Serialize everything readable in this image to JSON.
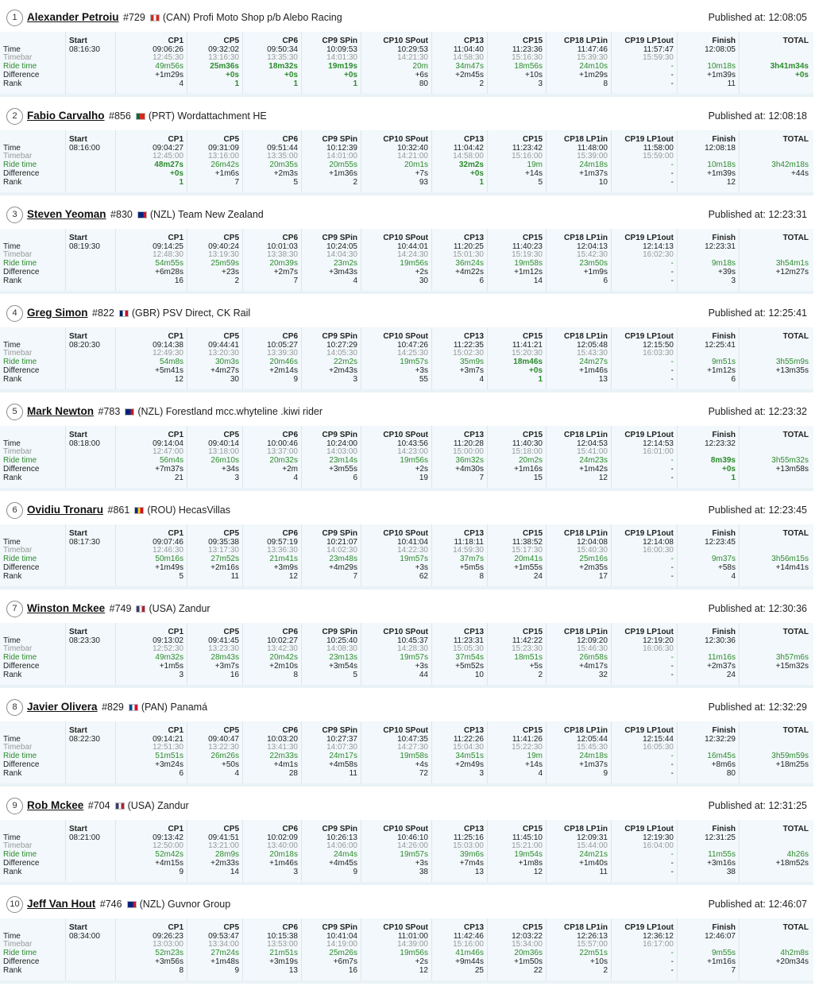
{
  "columns": [
    "Start",
    "CP1",
    "CP5",
    "CP6",
    "CP9 SPin",
    "CP10 SPout",
    "CP13",
    "CP15",
    "CP18 LP1in",
    "CP19 LP1out",
    "Finish",
    "TOTAL"
  ],
  "row_labels": [
    "Time",
    "Timebar",
    "Ride time",
    "Difference",
    "Rank"
  ],
  "published_label": "Published at:",
  "colors": {
    "green": "#2e8b2e",
    "label_gray": "#999999",
    "row_bg": "#f2f8fb"
  },
  "riders": [
    {
      "pos": "1",
      "name": "Alexander Petroiu",
      "bib": "#729",
      "flag": "flag-can-icon",
      "flag_colors": [
        "#d52b1e",
        "#ffffff",
        "#d52b1e"
      ],
      "country": "(CAN)",
      "team": "Profi Moto Shop p/b Alebo Racing",
      "published": "12:08:05",
      "start": "08:16:30",
      "time": [
        "09:06:26",
        "09:32:02",
        "09:50:34",
        "10:09:53",
        "10:29:53",
        "11:04:40",
        "11:23:36",
        "11:47:46",
        "11:57:47",
        "12:08:05"
      ],
      "timebar": [
        "12:45:30",
        "13:16:30",
        "13:35:30",
        "14:01:30",
        "14:21:30",
        "14:58:30",
        "15:16:30",
        "15:39:30",
        "15:59:30",
        ""
      ],
      "ride": [
        "49m56s",
        "25m36s",
        "18m32s",
        "19m19s",
        "20m",
        "34m47s",
        "18m56s",
        "24m10s",
        "-",
        "10m18s",
        "3h41m34s"
      ],
      "ride_bold": [
        false,
        true,
        true,
        true,
        false,
        false,
        false,
        false,
        false,
        false,
        true
      ],
      "diff": [
        "+1m29s",
        "+0s",
        "+0s",
        "+0s",
        "+6s",
        "+2m45s",
        "+10s",
        "+1m29s",
        "-",
        "+1m39s",
        "+0s"
      ],
      "diff_green": [
        false,
        true,
        true,
        true,
        false,
        false,
        false,
        false,
        false,
        false,
        true
      ],
      "rank": [
        "4",
        "1",
        "1",
        "1",
        "80",
        "2",
        "3",
        "8",
        "-",
        "11",
        ""
      ],
      "rank_green": [
        false,
        true,
        true,
        true,
        false,
        false,
        false,
        false,
        false,
        false,
        false
      ]
    },
    {
      "pos": "2",
      "name": "Fabio Carvalho",
      "bib": "#856",
      "flag": "flag-prt-icon",
      "flag_colors": [
        "#046a38",
        "#da291c",
        "#da291c"
      ],
      "country": "(PRT)",
      "team": "Wordattachment HE",
      "published": "12:08:18",
      "start": "08:16:00",
      "time": [
        "09:04:27",
        "09:31:09",
        "09:51:44",
        "10:12:39",
        "10:32:40",
        "11:04:42",
        "11:23:42",
        "11:48:00",
        "11:58:00",
        "12:08:18"
      ],
      "timebar": [
        "12:45:00",
        "13:16:00",
        "13:35:00",
        "14:01:00",
        "14:21:00",
        "14:58:00",
        "15:16:00",
        "15:39:00",
        "15:59:00",
        ""
      ],
      "ride": [
        "48m27s",
        "26m42s",
        "20m35s",
        "20m55s",
        "20m1s",
        "32m2s",
        "19m",
        "24m18s",
        "-",
        "10m18s",
        "3h42m18s"
      ],
      "ride_bold": [
        true,
        false,
        false,
        false,
        false,
        true,
        false,
        false,
        false,
        false,
        false
      ],
      "diff": [
        "+0s",
        "+1m6s",
        "+2m3s",
        "+1m36s",
        "+7s",
        "+0s",
        "+14s",
        "+1m37s",
        "-",
        "+1m39s",
        "+44s"
      ],
      "diff_green": [
        true,
        false,
        false,
        false,
        false,
        true,
        false,
        false,
        false,
        false,
        false
      ],
      "rank": [
        "1",
        "7",
        "5",
        "2",
        "93",
        "1",
        "5",
        "10",
        "-",
        "12",
        ""
      ],
      "rank_green": [
        true,
        false,
        false,
        false,
        false,
        true,
        false,
        false,
        false,
        false,
        false
      ]
    },
    {
      "pos": "3",
      "name": "Steven Yeoman",
      "bib": "#830",
      "flag": "flag-nzl-icon",
      "flag_colors": [
        "#00247d",
        "#00247d",
        "#cc142b"
      ],
      "country": "(NZL)",
      "team": "Team New Zealand",
      "published": "12:23:31",
      "start": "08:19:30",
      "time": [
        "09:14:25",
        "09:40:24",
        "10:01:03",
        "10:24:05",
        "10:44:01",
        "11:20:25",
        "11:40:23",
        "12:04:13",
        "12:14:13",
        "12:23:31"
      ],
      "timebar": [
        "12:48:30",
        "13:19:30",
        "13:38:30",
        "14:04:30",
        "14:24:30",
        "15:01:30",
        "15:19:30",
        "15:42:30",
        "16:02:30",
        ""
      ],
      "ride": [
        "54m55s",
        "25m59s",
        "20m39s",
        "23m2s",
        "19m56s",
        "36m24s",
        "19m58s",
        "23m50s",
        "-",
        "9m18s",
        "3h54m1s"
      ],
      "ride_bold": [
        false,
        false,
        false,
        false,
        false,
        false,
        false,
        false,
        false,
        false,
        false
      ],
      "diff": [
        "+6m28s",
        "+23s",
        "+2m7s",
        "+3m43s",
        "+2s",
        "+4m22s",
        "+1m12s",
        "+1m9s",
        "-",
        "+39s",
        "+12m27s"
      ],
      "diff_green": [
        false,
        false,
        false,
        false,
        false,
        false,
        false,
        false,
        false,
        false,
        false
      ],
      "rank": [
        "16",
        "2",
        "7",
        "4",
        "30",
        "6",
        "14",
        "6",
        "-",
        "3",
        ""
      ],
      "rank_green": [
        false,
        false,
        false,
        false,
        false,
        false,
        false,
        false,
        false,
        false,
        false
      ]
    },
    {
      "pos": "4",
      "name": "Greg Simon",
      "bib": "#822",
      "flag": "flag-gbr-icon",
      "flag_colors": [
        "#012169",
        "#ffffff",
        "#c8102e"
      ],
      "country": "(GBR)",
      "team": "PSV Direct, CK Rail",
      "published": "12:25:41",
      "start": "08:20:30",
      "time": [
        "09:14:38",
        "09:44:41",
        "10:05:27",
        "10:27:29",
        "10:47:26",
        "11:22:35",
        "11:41:21",
        "12:05:48",
        "12:15:50",
        "12:25:41"
      ],
      "timebar": [
        "12:49:30",
        "13:20:30",
        "13:39:30",
        "14:05:30",
        "14:25:30",
        "15:02:30",
        "15:20:30",
        "15:43:30",
        "16:03:30",
        ""
      ],
      "ride": [
        "54m8s",
        "30m3s",
        "20m46s",
        "22m2s",
        "19m57s",
        "35m9s",
        "18m46s",
        "24m27s",
        "-",
        "9m51s",
        "3h55m9s"
      ],
      "ride_bold": [
        false,
        false,
        false,
        false,
        false,
        false,
        true,
        false,
        false,
        false,
        false
      ],
      "diff": [
        "+5m41s",
        "+4m27s",
        "+2m14s",
        "+2m43s",
        "+3s",
        "+3m7s",
        "+0s",
        "+1m46s",
        "-",
        "+1m12s",
        "+13m35s"
      ],
      "diff_green": [
        false,
        false,
        false,
        false,
        false,
        false,
        true,
        false,
        false,
        false,
        false
      ],
      "rank": [
        "12",
        "30",
        "9",
        "3",
        "55",
        "4",
        "1",
        "13",
        "-",
        "6",
        ""
      ],
      "rank_green": [
        false,
        false,
        false,
        false,
        false,
        false,
        true,
        false,
        false,
        false,
        false
      ]
    },
    {
      "pos": "5",
      "name": "Mark Newton",
      "bib": "#783",
      "flag": "flag-nzl-icon",
      "flag_colors": [
        "#00247d",
        "#00247d",
        "#cc142b"
      ],
      "country": "(NZL)",
      "team": "Forestland mcc.whyteline .kiwi rider",
      "published": "12:23:32",
      "start": "08:18:00",
      "time": [
        "09:14:04",
        "09:40:14",
        "10:00:46",
        "10:24:00",
        "10:43:56",
        "11:20:28",
        "11:40:30",
        "12:04:53",
        "12:14:53",
        "12:23:32"
      ],
      "timebar": [
        "12:47:00",
        "13:18:00",
        "13:37:00",
        "14:03:00",
        "14:23:00",
        "15:00:00",
        "15:18:00",
        "15:41:00",
        "16:01:00",
        ""
      ],
      "ride": [
        "56m4s",
        "26m10s",
        "20m32s",
        "23m14s",
        "19m56s",
        "36m32s",
        "20m2s",
        "24m23s",
        "-",
        "8m39s",
        "3h55m32s"
      ],
      "ride_bold": [
        false,
        false,
        false,
        false,
        false,
        false,
        false,
        false,
        false,
        true,
        false
      ],
      "diff": [
        "+7m37s",
        "+34s",
        "+2m",
        "+3m55s",
        "+2s",
        "+4m30s",
        "+1m16s",
        "+1m42s",
        "-",
        "+0s",
        "+13m58s"
      ],
      "diff_green": [
        false,
        false,
        false,
        false,
        false,
        false,
        false,
        false,
        false,
        true,
        false
      ],
      "rank": [
        "21",
        "3",
        "4",
        "6",
        "19",
        "7",
        "15",
        "12",
        "-",
        "1",
        ""
      ],
      "rank_green": [
        false,
        false,
        false,
        false,
        false,
        false,
        false,
        false,
        false,
        true,
        false
      ]
    },
    {
      "pos": "6",
      "name": "Ovidiu Tronaru",
      "bib": "#861",
      "flag": "flag-rou-icon",
      "flag_colors": [
        "#002b7f",
        "#fcd116",
        "#ce1126"
      ],
      "country": "(ROU)",
      "team": "HecasVillas",
      "published": "12:23:45",
      "start": "08:17:30",
      "time": [
        "09:07:46",
        "09:35:38",
        "09:57:19",
        "10:21:07",
        "10:41:04",
        "11:18:11",
        "11:38:52",
        "12:04:08",
        "12:14:08",
        "12:23:45"
      ],
      "timebar": [
        "12:46:30",
        "13:17:30",
        "13:36:30",
        "14:02:30",
        "14:22:30",
        "14:59:30",
        "15:17:30",
        "15:40:30",
        "16:00:30",
        ""
      ],
      "ride": [
        "50m16s",
        "27m52s",
        "21m41s",
        "23m48s",
        "19m57s",
        "37m7s",
        "20m41s",
        "25m16s",
        "-",
        "9m37s",
        "3h56m15s"
      ],
      "ride_bold": [
        false,
        false,
        false,
        false,
        false,
        false,
        false,
        false,
        false,
        false,
        false
      ],
      "diff": [
        "+1m49s",
        "+2m16s",
        "+3m9s",
        "+4m29s",
        "+3s",
        "+5m5s",
        "+1m55s",
        "+2m35s",
        "-",
        "+58s",
        "+14m41s"
      ],
      "diff_green": [
        false,
        false,
        false,
        false,
        false,
        false,
        false,
        false,
        false,
        false,
        false
      ],
      "rank": [
        "5",
        "11",
        "12",
        "7",
        "62",
        "8",
        "24",
        "17",
        "-",
        "4",
        ""
      ],
      "rank_green": [
        false,
        false,
        false,
        false,
        false,
        false,
        false,
        false,
        false,
        false,
        false
      ]
    },
    {
      "pos": "7",
      "name": "Winston Mckee",
      "bib": "#749",
      "flag": "flag-usa-icon",
      "flag_colors": [
        "#3c3b6e",
        "#ffffff",
        "#b22234"
      ],
      "country": "(USA)",
      "team": "Zandur",
      "published": "12:30:36",
      "start": "08:23:30",
      "time": [
        "09:13:02",
        "09:41:45",
        "10:02:27",
        "10:25:40",
        "10:45:37",
        "11:23:31",
        "11:42:22",
        "12:09:20",
        "12:19:20",
        "12:30:36"
      ],
      "timebar": [
        "12:52:30",
        "13:23:30",
        "13:42:30",
        "14:08:30",
        "14:28:30",
        "15:05:30",
        "15:23:30",
        "15:46:30",
        "16:06:30",
        ""
      ],
      "ride": [
        "49m32s",
        "28m43s",
        "20m42s",
        "23m13s",
        "19m57s",
        "37m54s",
        "18m51s",
        "26m58s",
        "-",
        "11m16s",
        "3h57m6s"
      ],
      "ride_bold": [
        false,
        false,
        false,
        false,
        false,
        false,
        false,
        false,
        false,
        false,
        false
      ],
      "diff": [
        "+1m5s",
        "+3m7s",
        "+2m10s",
        "+3m54s",
        "+3s",
        "+5m52s",
        "+5s",
        "+4m17s",
        "-",
        "+2m37s",
        "+15m32s"
      ],
      "diff_green": [
        false,
        false,
        false,
        false,
        false,
        false,
        false,
        false,
        false,
        false,
        false
      ],
      "rank": [
        "3",
        "16",
        "8",
        "5",
        "44",
        "10",
        "2",
        "32",
        "-",
        "24",
        ""
      ],
      "rank_green": [
        false,
        false,
        false,
        false,
        false,
        false,
        false,
        false,
        false,
        false,
        false
      ]
    },
    {
      "pos": "8",
      "name": "Javier Olivera",
      "bib": "#829",
      "flag": "flag-pan-icon",
      "flag_colors": [
        "#005293",
        "#ffffff",
        "#d21034"
      ],
      "country": "(PAN)",
      "team": "Panamá",
      "published": "12:32:29",
      "start": "08:22:30",
      "time": [
        "09:14:21",
        "09:40:47",
        "10:03:20",
        "10:27:37",
        "10:47:35",
        "11:22:26",
        "11:41:26",
        "12:05:44",
        "12:15:44",
        "12:32:29"
      ],
      "timebar": [
        "12:51:30",
        "13:22:30",
        "13:41:30",
        "14:07:30",
        "14:27:30",
        "15:04:30",
        "15:22:30",
        "15:45:30",
        "16:05:30",
        ""
      ],
      "ride": [
        "51m51s",
        "26m26s",
        "22m33s",
        "24m17s",
        "19m58s",
        "34m51s",
        "19m",
        "24m18s",
        "-",
        "16m45s",
        "3h59m59s"
      ],
      "ride_bold": [
        false,
        false,
        false,
        false,
        false,
        false,
        false,
        false,
        false,
        false,
        false
      ],
      "diff": [
        "+3m24s",
        "+50s",
        "+4m1s",
        "+4m58s",
        "+4s",
        "+2m49s",
        "+14s",
        "+1m37s",
        "-",
        "+8m6s",
        "+18m25s"
      ],
      "diff_green": [
        false,
        false,
        false,
        false,
        false,
        false,
        false,
        false,
        false,
        false,
        false
      ],
      "rank": [
        "6",
        "4",
        "28",
        "11",
        "72",
        "3",
        "4",
        "9",
        "-",
        "80",
        ""
      ],
      "rank_green": [
        false,
        false,
        false,
        false,
        false,
        false,
        false,
        false,
        false,
        false,
        false
      ]
    },
    {
      "pos": "9",
      "name": "Rob Mckee",
      "bib": "#704",
      "flag": "flag-usa-icon",
      "flag_colors": [
        "#3c3b6e",
        "#ffffff",
        "#b22234"
      ],
      "country": "(USA)",
      "team": "Zandur",
      "published": "12:31:25",
      "start": "08:21:00",
      "time": [
        "09:13:42",
        "09:41:51",
        "10:02:09",
        "10:26:13",
        "10:46:10",
        "11:25:16",
        "11:45:10",
        "12:09:31",
        "12:19:30",
        "12:31:25"
      ],
      "timebar": [
        "12:50:00",
        "13:21:00",
        "13:40:00",
        "14:06:00",
        "14:26:00",
        "15:03:00",
        "15:21:00",
        "15:44:00",
        "16:04:00",
        ""
      ],
      "ride": [
        "52m42s",
        "28m9s",
        "20m18s",
        "24m4s",
        "19m57s",
        "39m6s",
        "19m54s",
        "24m21s",
        "-",
        "11m55s",
        "4h26s"
      ],
      "ride_bold": [
        false,
        false,
        false,
        false,
        false,
        false,
        false,
        false,
        false,
        false,
        false
      ],
      "diff": [
        "+4m15s",
        "+2m33s",
        "+1m46s",
        "+4m45s",
        "+3s",
        "+7m4s",
        "+1m8s",
        "+1m40s",
        "-",
        "+3m16s",
        "+18m52s"
      ],
      "diff_green": [
        false,
        false,
        false,
        false,
        false,
        false,
        false,
        false,
        false,
        false,
        false
      ],
      "rank": [
        "9",
        "14",
        "3",
        "9",
        "38",
        "13",
        "12",
        "11",
        "-",
        "38",
        ""
      ],
      "rank_green": [
        false,
        false,
        false,
        false,
        false,
        false,
        false,
        false,
        false,
        false,
        false
      ]
    },
    {
      "pos": "10",
      "name": "Jeff Van Hout",
      "bib": "#746",
      "flag": "flag-nzl-icon",
      "flag_colors": [
        "#00247d",
        "#00247d",
        "#cc142b"
      ],
      "country": "(NZL)",
      "team": "Guvnor Group",
      "published": "12:46:07",
      "start": "08:34:00",
      "time": [
        "09:26:23",
        "09:53:47",
        "10:15:38",
        "10:41:04",
        "11:01:00",
        "11:42:46",
        "12:03:22",
        "12:26:13",
        "12:36:12",
        "12:46:07"
      ],
      "timebar": [
        "13:03:00",
        "13:34:00",
        "13:53:00",
        "14:19:00",
        "14:39:00",
        "15:16:00",
        "15:34:00",
        "15:57:00",
        "16:17:00",
        ""
      ],
      "ride": [
        "52m23s",
        "27m24s",
        "21m51s",
        "25m26s",
        "19m56s",
        "41m46s",
        "20m36s",
        "22m51s",
        "-",
        "9m55s",
        "4h2m8s"
      ],
      "ride_bold": [
        false,
        false,
        false,
        false,
        false,
        false,
        false,
        false,
        false,
        false,
        false
      ],
      "diff": [
        "+3m56s",
        "+1m48s",
        "+3m19s",
        "+6m7s",
        "+2s",
        "+9m44s",
        "+1m50s",
        "+10s",
        "-",
        "+1m16s",
        "+20m34s"
      ],
      "diff_green": [
        false,
        false,
        false,
        false,
        false,
        false,
        false,
        false,
        false,
        false,
        false
      ],
      "rank": [
        "8",
        "9",
        "13",
        "16",
        "12",
        "25",
        "22",
        "2",
        "-",
        "7",
        ""
      ],
      "rank_green": [
        false,
        false,
        false,
        false,
        false,
        false,
        false,
        false,
        false,
        false,
        false
      ]
    }
  ]
}
